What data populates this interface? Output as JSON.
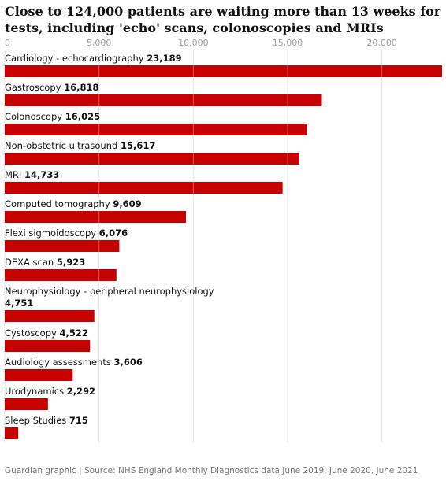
{
  "chart_data": {
    "type": "bar",
    "orientation": "horizontal",
    "title": "Close to 124,000 patients are waiting more than 13 weeks for tests, including 'echo' scans, colonoscopies and MRIs",
    "x_ticks": [
      "0",
      "5,000",
      "10,000",
      "15,000",
      "20,000"
    ],
    "x_tick_values": [
      0,
      5000,
      10000,
      15000,
      20000
    ],
    "xlim": [
      0,
      23189
    ],
    "grid": true,
    "categories": [
      "Cardiology - echocardiography",
      "Gastroscopy",
      "Colonoscopy",
      "Non-obstetric ultrasound",
      "MRI",
      "Computed tomography",
      "Flexi sigmoidoscopy",
      "DEXA scan",
      "Neurophysiology - peripheral neurophysiology",
      "Cystoscopy",
      "Audiology assessments",
      "Urodynamics",
      "Sleep Studies"
    ],
    "values": [
      23189,
      16818,
      16025,
      15617,
      14733,
      9609,
      6076,
      5923,
      4751,
      4522,
      3606,
      2292,
      715
    ],
    "value_labels": [
      "23,189",
      "16,818",
      "16,025",
      "15,617",
      "14,733",
      "9,609",
      "6,076",
      "5,923",
      "4,751",
      "4,522",
      "3,606",
      "2,292",
      "715"
    ],
    "bar_color": "#c70000"
  },
  "footer": "Guardian graphic | Source: NHS England Monthly Diagnostics data June 2019, June 2020, June 2021"
}
